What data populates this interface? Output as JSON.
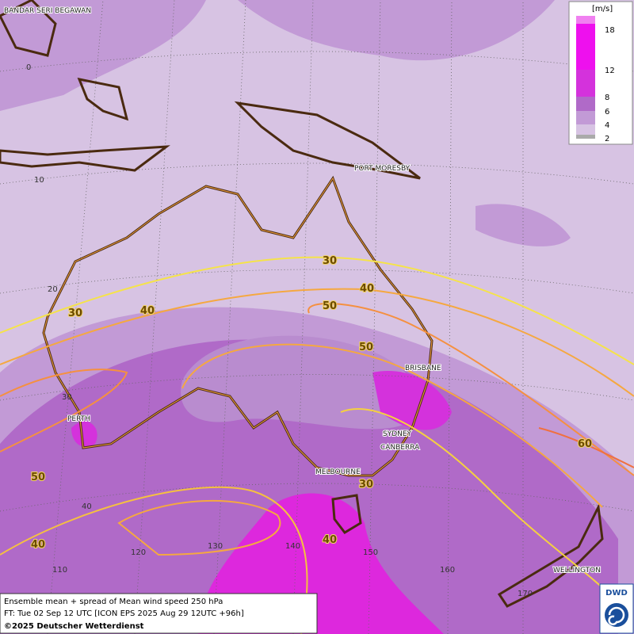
{
  "map": {
    "places": [
      "BANDAR SERI BEGAWAN",
      "PORT MORESBY",
      "BRISBANE",
      "SYDNEY",
      "CANBERRA",
      "MELBOURNE",
      "PERTH",
      "WELLINGTON"
    ],
    "lat_labels": [
      "0",
      "10",
      "20",
      "30",
      "40"
    ],
    "lon_labels": [
      "110",
      "120",
      "130",
      "140",
      "150",
      "160",
      "170"
    ],
    "contour_labels": [
      "30",
      "40",
      "30",
      "40",
      "50",
      "50",
      "50",
      "40",
      "40",
      "30",
      "60"
    ],
    "legend": {
      "unit": "[m/s]",
      "levels": [
        "18",
        "12",
        "8",
        "6",
        "4",
        "2"
      ]
    },
    "footer": {
      "line1": "Ensemble mean + spread of Mean wind speed 250 hPa",
      "line2": "FT: Tue 02 Sep 12 UTC [ICON EPS 2025 Aug 29 12UTC +96h]",
      "line3": "©2025 Deutscher Wetterdienst"
    },
    "logo": "DWD"
  }
}
